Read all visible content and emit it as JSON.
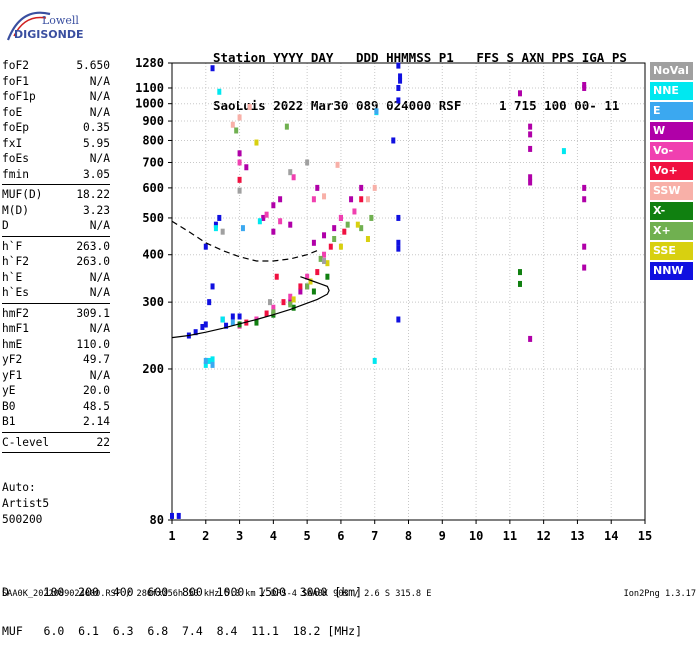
{
  "logo": {
    "line1": "Lowell",
    "line2": "DIGISONDE"
  },
  "header": {
    "line1": "Station YYYY DAY   DDD HHMMSS P1   FFS S AXN PPS IGA PS",
    "line2": "SaoLuis 2022 Mar30 089 024000 RSF     1 715 100 00- 11"
  },
  "params": {
    "group1": [
      {
        "k": "foF2",
        "v": "5.650"
      },
      {
        "k": "foF1",
        "v": "N/A"
      },
      {
        "k": "foF1p",
        "v": "N/A"
      },
      {
        "k": "foE",
        "v": "N/A"
      },
      {
        "k": "foEp",
        "v": "0.35"
      },
      {
        "k": "fxI",
        "v": "5.95"
      },
      {
        "k": "foEs",
        "v": "N/A"
      },
      {
        "k": "fmin",
        "v": "3.05"
      }
    ],
    "group2": [
      {
        "k": "MUF(D)",
        "v": "18.22"
      },
      {
        "k": "M(D)",
        "v": "3.23"
      },
      {
        "k": "D",
        "v": "N/A"
      }
    ],
    "group3": [
      {
        "k": "h`F",
        "v": "263.0"
      },
      {
        "k": "h`F2",
        "v": "263.0"
      },
      {
        "k": "h`E",
        "v": "N/A"
      },
      {
        "k": "h`Es",
        "v": "N/A"
      }
    ],
    "group4": [
      {
        "k": "hmF2",
        "v": "309.1"
      },
      {
        "k": "hmF1",
        "v": "N/A"
      },
      {
        "k": "hmE",
        "v": "110.0"
      },
      {
        "k": "yF2",
        "v": "49.7"
      },
      {
        "k": "yF1",
        "v": "N/A"
      },
      {
        "k": "yE",
        "v": "20.0"
      },
      {
        "k": "B0",
        "v": "48.5"
      },
      {
        "k": "B1",
        "v": "2.14"
      }
    ],
    "group5": [
      {
        "k": "C-level",
        "v": "22"
      }
    ]
  },
  "auto": {
    "line1": "Auto:",
    "line2": "Artist5",
    "line3": "500200"
  },
  "legend": [
    {
      "label": "NoVal",
      "color": "#a0a0a0"
    },
    {
      "label": "NNE",
      "color": "#00e8f0"
    },
    {
      "label": "E",
      "color": "#3ba8f0"
    },
    {
      "label": "W",
      "color": "#b000a8"
    },
    {
      "label": "Vo-",
      "color": "#f040b0"
    },
    {
      "label": "Vo+",
      "color": "#f01040"
    },
    {
      "label": "SSW",
      "color": "#f8b0a8"
    },
    {
      "label": "X-",
      "color": "#108010"
    },
    {
      "label": "X+",
      "color": "#70b050"
    },
    {
      "label": "SSE",
      "color": "#d8d010"
    },
    {
      "label": "NNW",
      "color": "#1010e0"
    }
  ],
  "footer": {
    "line1": "D     100  200  400  600  800  1000  1500  3000 [km]",
    "line2": "MUF   6.0  6.1  6.3  6.8  7.4  8.4  11.1  18.2 [MHz]",
    "file": "SAA0K_2022089024000.RSF / 280fx256h 50 kHz 5.0 km / DPS-4 SAA0K 903 / 2.6 S 315.8 E",
    "version": "Ion2Png 1.3.17"
  },
  "chart_data": {
    "type": "scatter",
    "title": "",
    "xlabel": "",
    "ylabel": "",
    "xlim": [
      1,
      15
    ],
    "ylim": [
      80,
      1280
    ],
    "yscale": "log",
    "x_ticks": [
      1,
      2,
      3,
      4,
      5,
      6,
      7,
      8,
      9,
      10,
      11,
      12,
      13,
      14,
      15
    ],
    "y_ticks": [
      80,
      200,
      300,
      400,
      500,
      600,
      700,
      800,
      900,
      1000,
      1100,
      1280
    ],
    "grid": true,
    "series": [
      {
        "name": "NNW",
        "color": "#1010e0",
        "points": [
          [
            1.0,
            82
          ],
          [
            1.2,
            82
          ],
          [
            1.5,
            245
          ],
          [
            1.7,
            250
          ],
          [
            1.9,
            258
          ],
          [
            2.0,
            262
          ],
          [
            2.1,
            300
          ],
          [
            2.2,
            330
          ],
          [
            2.3,
            480
          ],
          [
            2.4,
            500
          ],
          [
            2.5,
            270
          ],
          [
            2.8,
            275
          ],
          [
            3.0,
            275
          ],
          [
            2.2,
            1240
          ],
          [
            7.7,
            1260
          ],
          [
            7.75,
            1180
          ],
          [
            7.75,
            1150
          ],
          [
            7.7,
            1100
          ],
          [
            7.7,
            1020
          ],
          [
            7.7,
            430
          ],
          [
            7.7,
            415
          ],
          [
            7.7,
            270
          ],
          [
            7.55,
            800
          ],
          [
            7.7,
            500
          ],
          [
            2.0,
            420
          ],
          [
            2.6,
            260
          ]
        ]
      },
      {
        "name": "W",
        "color": "#b000a8",
        "points": [
          [
            3.5,
            270
          ],
          [
            4.0,
            280
          ],
          [
            4.5,
            300
          ],
          [
            5.0,
            330
          ],
          [
            5.2,
            430
          ],
          [
            5.5,
            450
          ],
          [
            5.8,
            470
          ],
          [
            6.0,
            500
          ],
          [
            6.3,
            560
          ],
          [
            6.6,
            600
          ],
          [
            4.0,
            460
          ],
          [
            4.5,
            480
          ],
          [
            4.0,
            540
          ],
          [
            4.2,
            560
          ],
          [
            3.2,
            680
          ],
          [
            3.0,
            740
          ],
          [
            11.3,
            1065
          ],
          [
            11.6,
            870
          ],
          [
            11.6,
            830
          ],
          [
            11.6,
            760
          ],
          [
            11.6,
            640
          ],
          [
            11.6,
            620
          ],
          [
            11.6,
            240
          ],
          [
            13.2,
            1120
          ],
          [
            13.2,
            1100
          ],
          [
            13.2,
            600
          ],
          [
            13.2,
            560
          ],
          [
            13.2,
            420
          ],
          [
            13.2,
            370
          ],
          [
            3.7,
            500
          ],
          [
            4.8,
            320
          ],
          [
            5.3,
            600
          ]
        ]
      },
      {
        "name": "Vo-",
        "color": "#f040b0",
        "points": [
          [
            3.0,
            260
          ],
          [
            3.5,
            270
          ],
          [
            4.0,
            290
          ],
          [
            4.5,
            310
          ],
          [
            5.0,
            350
          ],
          [
            5.5,
            400
          ],
          [
            6.0,
            500
          ],
          [
            6.4,
            520
          ],
          [
            4.2,
            490
          ],
          [
            3.8,
            510
          ],
          [
            3.0,
            700
          ],
          [
            4.6,
            640
          ],
          [
            5.2,
            560
          ]
        ]
      },
      {
        "name": "Vo+",
        "color": "#f01040",
        "points": [
          [
            3.2,
            265
          ],
          [
            3.8,
            280
          ],
          [
            4.3,
            300
          ],
          [
            4.8,
            330
          ],
          [
            5.3,
            360
          ],
          [
            5.7,
            420
          ],
          [
            6.1,
            460
          ],
          [
            6.6,
            560
          ],
          [
            3.0,
            630
          ],
          [
            4.1,
            350
          ]
        ]
      },
      {
        "name": "SSW",
        "color": "#f8b0a8",
        "points": [
          [
            3.0,
            920
          ],
          [
            3.3,
            980
          ],
          [
            2.8,
            880
          ],
          [
            5.5,
            570
          ],
          [
            5.9,
            690
          ],
          [
            6.8,
            560
          ],
          [
            7.0,
            600
          ]
        ]
      },
      {
        "name": "X-",
        "color": "#108010",
        "points": [
          [
            3.0,
            262
          ],
          [
            3.5,
            265
          ],
          [
            4.0,
            278
          ],
          [
            4.6,
            290
          ],
          [
            5.2,
            320
          ],
          [
            5.6,
            350
          ],
          [
            11.3,
            360
          ],
          [
            11.3,
            335
          ]
        ]
      },
      {
        "name": "X+",
        "color": "#70b050",
        "points": [
          [
            4.0,
            282
          ],
          [
            4.5,
            296
          ],
          [
            5.0,
            330
          ],
          [
            5.4,
            390
          ],
          [
            5.8,
            440
          ],
          [
            6.2,
            480
          ],
          [
            2.9,
            850
          ],
          [
            4.4,
            870
          ],
          [
            6.6,
            470
          ],
          [
            6.9,
            500
          ]
        ]
      },
      {
        "name": "SSE",
        "color": "#d8d010",
        "points": [
          [
            4.6,
            305
          ],
          [
            5.1,
            340
          ],
          [
            5.6,
            380
          ],
          [
            6.0,
            420
          ],
          [
            6.5,
            480
          ],
          [
            3.5,
            790
          ],
          [
            6.8,
            440
          ]
        ]
      },
      {
        "name": "NNE",
        "color": "#00e8f0",
        "points": [
          [
            2.0,
            205
          ],
          [
            2.1,
            210
          ],
          [
            2.2,
            212
          ],
          [
            2.5,
            270
          ],
          [
            3.6,
            490
          ],
          [
            2.4,
            1075
          ],
          [
            12.6,
            750
          ],
          [
            7.0,
            210
          ],
          [
            7.05,
            950
          ],
          [
            2.3,
            470
          ]
        ]
      },
      {
        "name": "E",
        "color": "#3ba8f0",
        "points": [
          [
            2.0,
            210
          ],
          [
            2.2,
            205
          ],
          [
            2.8,
            265
          ],
          [
            3.1,
            470
          ],
          [
            7.05,
            955
          ]
        ]
      },
      {
        "name": "NoVal",
        "color": "#a0a0a0",
        "points": [
          [
            2.5,
            460
          ],
          [
            3.9,
            300
          ],
          [
            5.5,
            385
          ],
          [
            3.0,
            590
          ],
          [
            4.5,
            660
          ],
          [
            5.0,
            700
          ]
        ]
      }
    ],
    "traces": [
      {
        "name": "solid",
        "style": "solid",
        "points": [
          [
            1.0,
            242
          ],
          [
            1.5,
            245
          ],
          [
            2.0,
            250
          ],
          [
            2.5,
            256
          ],
          [
            3.0,
            263
          ],
          [
            3.5,
            270
          ],
          [
            4.0,
            278
          ],
          [
            4.5,
            287
          ],
          [
            5.0,
            298
          ],
          [
            5.3,
            305
          ],
          [
            5.6,
            315
          ],
          [
            5.65,
            322
          ],
          [
            5.6,
            330
          ],
          [
            5.4,
            335
          ],
          [
            5.2,
            340
          ],
          [
            5.0,
            345
          ],
          [
            4.8,
            350
          ]
        ]
      },
      {
        "name": "dashed",
        "style": "dashed",
        "points": [
          [
            1.0,
            490
          ],
          [
            1.5,
            460
          ],
          [
            2.0,
            430
          ],
          [
            2.5,
            410
          ],
          [
            3.0,
            395
          ],
          [
            3.5,
            385
          ],
          [
            4.0,
            385
          ],
          [
            4.5,
            390
          ],
          [
            5.0,
            400
          ],
          [
            5.3,
            410
          ]
        ]
      }
    ]
  }
}
